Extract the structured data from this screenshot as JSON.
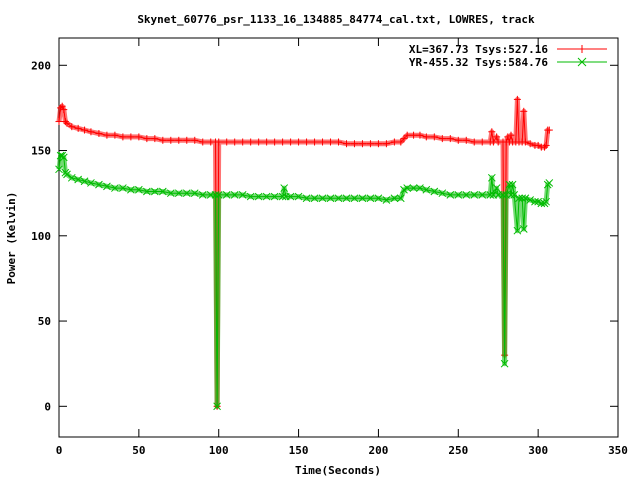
{
  "chart_data": {
    "type": "line",
    "title": "Skynet_60776_psr_1133_16_134885_84774_cal.txt, LOWRES, track",
    "xlabel": "Time(Seconds)",
    "ylabel": "Power (Kelvin)",
    "xlim": [
      0,
      350
    ],
    "ylim": [
      -18,
      216
    ],
    "x_ticks": [
      "0",
      "50",
      "100",
      "150",
      "200",
      "250",
      "300",
      "350"
    ],
    "x_tick_values": [
      0,
      50,
      100,
      150,
      200,
      250,
      300,
      350
    ],
    "y_ticks": [
      "0",
      "50",
      "100",
      "150",
      "200"
    ],
    "y_tick_values": [
      0,
      50,
      100,
      150,
      200
    ],
    "grid": false,
    "legend_position": "top-right",
    "series": [
      {
        "name": "XL=367.73 Tsys:527.16",
        "color": "#ff0000",
        "marker": "plus",
        "points": [
          [
            0,
            167
          ],
          [
            1,
            175
          ],
          [
            2,
            176
          ],
          [
            3,
            174
          ],
          [
            4,
            167
          ],
          [
            5,
            166
          ],
          [
            8,
            164
          ],
          [
            12,
            163
          ],
          [
            16,
            162
          ],
          [
            20,
            161
          ],
          [
            25,
            160
          ],
          [
            30,
            159
          ],
          [
            35,
            159
          ],
          [
            40,
            158
          ],
          [
            45,
            158
          ],
          [
            50,
            158
          ],
          [
            55,
            157
          ],
          [
            60,
            157
          ],
          [
            65,
            156
          ],
          [
            70,
            156
          ],
          [
            75,
            156
          ],
          [
            80,
            156
          ],
          [
            85,
            156
          ],
          [
            90,
            155
          ],
          [
            95,
            155
          ],
          [
            98,
            155
          ],
          [
            99,
            0
          ],
          [
            100,
            155
          ],
          [
            105,
            155
          ],
          [
            110,
            155
          ],
          [
            115,
            155
          ],
          [
            120,
            155
          ],
          [
            125,
            155
          ],
          [
            130,
            155
          ],
          [
            135,
            155
          ],
          [
            140,
            155
          ],
          [
            145,
            155
          ],
          [
            150,
            155
          ],
          [
            155,
            155
          ],
          [
            160,
            155
          ],
          [
            165,
            155
          ],
          [
            170,
            155
          ],
          [
            175,
            155
          ],
          [
            180,
            154
          ],
          [
            185,
            154
          ],
          [
            190,
            154
          ],
          [
            195,
            154
          ],
          [
            200,
            154
          ],
          [
            205,
            154
          ],
          [
            210,
            155
          ],
          [
            214,
            155
          ],
          [
            216,
            157
          ],
          [
            218,
            159
          ],
          [
            222,
            159
          ],
          [
            226,
            159
          ],
          [
            230,
            158
          ],
          [
            235,
            158
          ],
          [
            240,
            157
          ],
          [
            245,
            157
          ],
          [
            250,
            156
          ],
          [
            255,
            156
          ],
          [
            260,
            155
          ],
          [
            265,
            155
          ],
          [
            270,
            155
          ],
          [
            271,
            161
          ],
          [
            272,
            155
          ],
          [
            274,
            158
          ],
          [
            275,
            155
          ],
          [
            278,
            155
          ],
          [
            279,
            30
          ],
          [
            280,
            155
          ],
          [
            281,
            158
          ],
          [
            282,
            155
          ],
          [
            283,
            159
          ],
          [
            284,
            155
          ],
          [
            286,
            155
          ],
          [
            287,
            180
          ],
          [
            288,
            155
          ],
          [
            290,
            155
          ],
          [
            291,
            173
          ],
          [
            292,
            155
          ],
          [
            295,
            154
          ],
          [
            298,
            153
          ],
          [
            300,
            153
          ],
          [
            302,
            152
          ],
          [
            304,
            152
          ],
          [
            305,
            153
          ],
          [
            306,
            162
          ],
          [
            307,
            162
          ]
        ]
      },
      {
        "name": "YR-455.32 Tsys:584.76",
        "color": "#00bb00",
        "marker": "cross",
        "points": [
          [
            0,
            139
          ],
          [
            1,
            147
          ],
          [
            2,
            147
          ],
          [
            3,
            146
          ],
          [
            4,
            137
          ],
          [
            5,
            136
          ],
          [
            8,
            134
          ],
          [
            12,
            133
          ],
          [
            16,
            132
          ],
          [
            20,
            131
          ],
          [
            25,
            130
          ],
          [
            30,
            129
          ],
          [
            35,
            128
          ],
          [
            40,
            128
          ],
          [
            45,
            127
          ],
          [
            50,
            127
          ],
          [
            55,
            126
          ],
          [
            60,
            126
          ],
          [
            65,
            126
          ],
          [
            70,
            125
          ],
          [
            75,
            125
          ],
          [
            80,
            125
          ],
          [
            85,
            125
          ],
          [
            90,
            124
          ],
          [
            95,
            124
          ],
          [
            98,
            124
          ],
          [
            99,
            0
          ],
          [
            100,
            124
          ],
          [
            105,
            124
          ],
          [
            110,
            124
          ],
          [
            115,
            124
          ],
          [
            120,
            123
          ],
          [
            125,
            123
          ],
          [
            130,
            123
          ],
          [
            135,
            123
          ],
          [
            140,
            123
          ],
          [
            141,
            128
          ],
          [
            142,
            123
          ],
          [
            145,
            123
          ],
          [
            150,
            123
          ],
          [
            155,
            122
          ],
          [
            160,
            122
          ],
          [
            165,
            122
          ],
          [
            170,
            122
          ],
          [
            175,
            122
          ],
          [
            180,
            122
          ],
          [
            185,
            122
          ],
          [
            190,
            122
          ],
          [
            195,
            122
          ],
          [
            200,
            122
          ],
          [
            205,
            121
          ],
          [
            210,
            122
          ],
          [
            214,
            122
          ],
          [
            216,
            127
          ],
          [
            218,
            128
          ],
          [
            222,
            128
          ],
          [
            226,
            128
          ],
          [
            230,
            127
          ],
          [
            235,
            126
          ],
          [
            240,
            125
          ],
          [
            245,
            124
          ],
          [
            250,
            124
          ],
          [
            255,
            124
          ],
          [
            260,
            124
          ],
          [
            265,
            124
          ],
          [
            270,
            124
          ],
          [
            271,
            134
          ],
          [
            272,
            124
          ],
          [
            274,
            128
          ],
          [
            275,
            124
          ],
          [
            278,
            124
          ],
          [
            279,
            25
          ],
          [
            280,
            124
          ],
          [
            282,
            130
          ],
          [
            283,
            124
          ],
          [
            284,
            130
          ],
          [
            285,
            124
          ],
          [
            287,
            103
          ],
          [
            288,
            122
          ],
          [
            290,
            122
          ],
          [
            291,
            104
          ],
          [
            292,
            122
          ],
          [
            295,
            121
          ],
          [
            298,
            120
          ],
          [
            300,
            120
          ],
          [
            302,
            119
          ],
          [
            304,
            119
          ],
          [
            305,
            120
          ],
          [
            306,
            130
          ],
          [
            307,
            131
          ]
        ]
      }
    ]
  }
}
